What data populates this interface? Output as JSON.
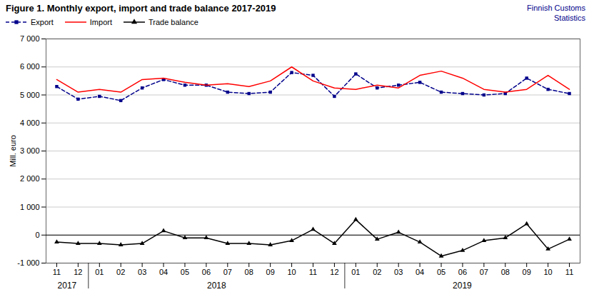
{
  "chart_data": {
    "type": "line",
    "title": "Figure 1. Monthly  export, import and trade balance 2017-2019",
    "annotations": [
      {
        "text": "Finnish Customs",
        "color": "#00008B"
      },
      {
        "text": "Statistics",
        "color": "#00008B"
      }
    ],
    "ylabel": "Mill. euro",
    "categories": [
      "11",
      "12",
      "01",
      "02",
      "03",
      "04",
      "05",
      "06",
      "07",
      "08",
      "09",
      "10",
      "11",
      "12",
      "01",
      "02",
      "03",
      "04",
      "05",
      "06",
      "07",
      "08",
      "09",
      "10",
      "11"
    ],
    "x_group_labels": [
      "2017",
      "2018",
      "2019"
    ],
    "series": [
      {
        "name": "Export",
        "color": "#00008B",
        "line_style": "dashed",
        "marker": "square",
        "values": [
          5300,
          4850,
          4950,
          4800,
          5250,
          5550,
          5350,
          5350,
          5100,
          5050,
          5100,
          5800,
          5700,
          4950,
          5750,
          5250,
          5350,
          5450,
          5100,
          5050,
          5000,
          5050,
          5600,
          5200,
          5050
        ]
      },
      {
        "name": "Import",
        "color": "#FF0000",
        "line_style": "solid",
        "values": [
          5550,
          5100,
          5200,
          5100,
          5550,
          5600,
          5450,
          5350,
          5400,
          5300,
          5500,
          6000,
          5500,
          5250,
          5200,
          5350,
          5250,
          5700,
          5850,
          5600,
          5200,
          5100,
          5200,
          5700,
          5200
        ]
      },
      {
        "name": "Trade balance",
        "color": "#000000",
        "line_style": "solid",
        "marker": "triangle",
        "values": [
          -250,
          -300,
          -300,
          -350,
          -300,
          150,
          -100,
          -100,
          -300,
          -300,
          -350,
          -200,
          200,
          -300,
          550,
          -150,
          100,
          -250,
          -750,
          -550,
          -200,
          -100,
          400,
          -500,
          -150
        ]
      }
    ],
    "ylim": [
      -1000,
      7000
    ],
    "yticks": [
      {
        "value": -1000,
        "label": "-1 000"
      },
      0,
      {
        "value": 1000,
        "label": "1 000"
      },
      {
        "value": 2000,
        "label": "2 000"
      },
      {
        "value": 3000,
        "label": "3 000"
      },
      {
        "value": 4000,
        "label": "4 000"
      },
      {
        "value": 5000,
        "label": "5 000"
      },
      {
        "value": 6000,
        "label": "6 000"
      },
      {
        "value": 7000,
        "label": "7 000"
      }
    ],
    "grid": true,
    "legend": "upper left"
  }
}
